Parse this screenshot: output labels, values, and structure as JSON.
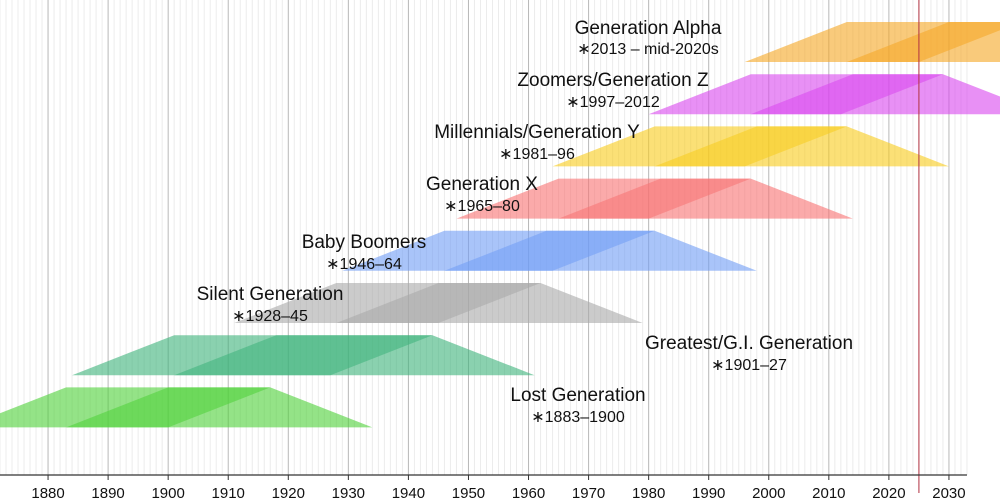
{
  "chart_data": {
    "type": "timeline",
    "title": "",
    "xlim": [
      1865,
      2035
    ],
    "current_year": 2025,
    "x_ticks": [
      "1880",
      "1890",
      "1900",
      "1910",
      "1920",
      "1930",
      "1940",
      "1950",
      "1960",
      "1970",
      "1980",
      "1990",
      "2000",
      "2010",
      "2020",
      "2030"
    ],
    "tick_values": [
      1880,
      1890,
      1900,
      1910,
      1920,
      1930,
      1940,
      1950,
      1960,
      1970,
      1980,
      1990,
      2000,
      2010,
      2020,
      2030
    ],
    "generations": [
      {
        "name": "Generation Alpha",
        "years": "∗2013 – mid-2020s",
        "start": 2013,
        "end": 2025,
        "color": "#f5a623"
      },
      {
        "name": "Zoomers/Generation Z",
        "years": "∗1997–2012",
        "start": 1997,
        "end": 2012,
        "color": "#d946ef"
      },
      {
        "name": "Millennials/Generation Y",
        "years": "∗1981–96",
        "start": 1981,
        "end": 1996,
        "color": "#f8cc1b"
      },
      {
        "name": "Generation X",
        "years": "∗1965–80",
        "start": 1965,
        "end": 1980,
        "color": "#f87171"
      },
      {
        "name": "Baby Boomers",
        "years": "∗1946–64",
        "start": 1946,
        "end": 1964,
        "color": "#6f9cf5"
      },
      {
        "name": "Silent Generation",
        "years": "∗1928–45",
        "start": 1928,
        "end": 1945,
        "color": "#a8a8a8"
      },
      {
        "name": "Greatest/G.I. Generation",
        "years": "∗1901–27",
        "start": 1901,
        "end": 1927,
        "color": "#3cb37a"
      },
      {
        "name": "Lost Generation",
        "years": "∗1883–1900",
        "start": 1883,
        "end": 1900,
        "color": "#4cd137"
      }
    ]
  }
}
